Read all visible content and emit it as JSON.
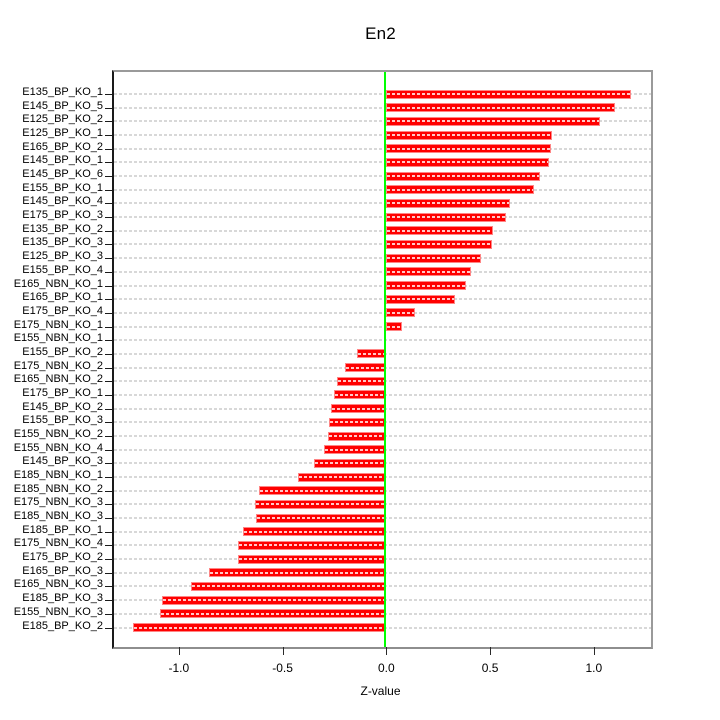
{
  "title": "En2",
  "x_axis": {
    "label": "Z-value",
    "tick_labels": [
      "-1.0",
      "-0.5",
      "0.0",
      "0.5",
      "1.0"
    ],
    "tick_values": [
      -1.0,
      -0.5,
      0.0,
      0.5,
      1.0
    ]
  },
  "colors": {
    "bar": "#ff0000",
    "bar_edge": "#ff8585",
    "zero_line": "#00ff00",
    "grid": "#d8d8d8",
    "box": "#9a9a9a",
    "axis": "#1a1a1a"
  },
  "chart_data": {
    "type": "bar",
    "orientation": "horizontal",
    "title": "En2",
    "xlabel": "Z-value",
    "xlim": [
      -1.31,
      1.28
    ],
    "grid": true,
    "grid_style": "dashed",
    "legend": false,
    "categories": [
      "E135_BP_KO_1",
      "E145_BP_KO_5",
      "E125_BP_KO_2",
      "E125_BP_KO_1",
      "E165_BP_KO_2",
      "E145_BP_KO_1",
      "E145_BP_KO_6",
      "E155_BP_KO_1",
      "E145_BP_KO_4",
      "E175_BP_KO_3",
      "E135_BP_KO_2",
      "E135_BP_KO_3",
      "E125_BP_KO_3",
      "E155_BP_KO_4",
      "E165_NBN_KO_1",
      "E165_BP_KO_1",
      "E175_BP_KO_4",
      "E175_NBN_KO_1",
      "E155_NBN_KO_1",
      "E155_BP_KO_2",
      "E175_NBN_KO_2",
      "E165_NBN_KO_2",
      "E175_BP_KO_1",
      "E145_BP_KO_2",
      "E155_BP_KO_3",
      "E155_NBN_KO_2",
      "E155_NBN_KO_4",
      "E145_BP_KO_3",
      "E185_NBN_KO_1",
      "E185_NBN_KO_2",
      "E175_NBN_KO_3",
      "E185_NBN_KO_3",
      "E185_BP_KO_1",
      "E175_NBN_KO_4",
      "E175_BP_KO_2",
      "E165_BP_KO_3",
      "E165_NBN_KO_3",
      "E185_BP_KO_3",
      "E155_NBN_KO_3",
      "E185_BP_KO_2"
    ],
    "values": [
      1.18,
      1.1,
      1.03,
      0.8,
      0.795,
      0.785,
      0.74,
      0.71,
      0.595,
      0.575,
      0.515,
      0.51,
      0.455,
      0.41,
      0.385,
      0.33,
      0.14,
      0.075,
      0.0,
      -0.14,
      -0.2,
      -0.24,
      -0.25,
      -0.265,
      -0.275,
      -0.28,
      -0.3,
      -0.35,
      -0.425,
      -0.615,
      -0.635,
      -0.63,
      -0.69,
      -0.715,
      -0.715,
      -0.855,
      -0.94,
      -1.08,
      -1.09,
      -1.22
    ]
  }
}
